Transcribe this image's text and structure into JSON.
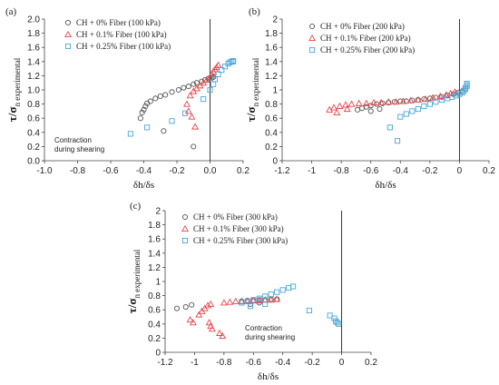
{
  "chart_data": [
    {
      "type": "scatter",
      "panel_label": "(a)",
      "xlabel": "δh/δs",
      "ylabel_main": "τ/σ",
      "ylabel_sub": "n experimental",
      "xlim": [
        -1.0,
        0.2
      ],
      "ylim": [
        0,
        2.0
      ],
      "xticks": [
        "-1.0",
        "-0.8",
        "-0.6",
        "-0.4",
        "-0.2",
        "0.0",
        "0.2"
      ],
      "yticks": [
        "0.0",
        "0.2",
        "0.4",
        "0.6",
        "0.8",
        "1.0",
        "1.2",
        "1.4",
        "1.6",
        "1.8",
        "2.0"
      ],
      "annotation": [
        "Contraction",
        "during shearing"
      ],
      "legend_position": "top-left",
      "series": [
        {
          "name": "CH + 0% Fiber (100 kPa)",
          "marker": "circle",
          "color": "#555555",
          "points": [
            [
              -0.42,
              0.6
            ],
            [
              -0.41,
              0.68
            ],
            [
              -0.4,
              0.72
            ],
            [
              -0.39,
              0.77
            ],
            [
              -0.38,
              0.81
            ],
            [
              -0.36,
              0.84
            ],
            [
              -0.33,
              0.88
            ],
            [
              -0.3,
              0.91
            ],
            [
              -0.27,
              0.93
            ],
            [
              -0.23,
              0.97
            ],
            [
              -0.19,
              1.0
            ],
            [
              -0.16,
              1.03
            ],
            [
              -0.13,
              1.05
            ],
            [
              -0.1,
              1.08
            ],
            [
              -0.08,
              1.1
            ],
            [
              -0.05,
              1.12
            ],
            [
              -0.03,
              1.14
            ],
            [
              -0.01,
              1.16
            ],
            [
              0.01,
              1.17
            ],
            [
              0.02,
              1.18
            ],
            [
              -0.1,
              0.2
            ],
            [
              -0.28,
              0.42
            ]
          ]
        },
        {
          "name": "CH + 0.1% Fiber (100 kPa)",
          "marker": "triangle",
          "color": "#e8454a",
          "points": [
            [
              -0.09,
              0.48
            ],
            [
              -0.11,
              0.62
            ],
            [
              -0.13,
              0.7
            ],
            [
              -0.14,
              0.8
            ],
            [
              -0.12,
              0.92
            ],
            [
              -0.1,
              0.98
            ],
            [
              -0.08,
              1.02
            ],
            [
              -0.06,
              1.06
            ],
            [
              -0.04,
              1.1
            ],
            [
              -0.02,
              1.14
            ],
            [
              0.0,
              1.18
            ],
            [
              0.01,
              1.22
            ],
            [
              0.02,
              1.26
            ],
            [
              0.03,
              1.29
            ],
            [
              0.04,
              1.32
            ],
            [
              0.05,
              1.35
            ]
          ]
        },
        {
          "name": "CH + 0.25% Fiber (100 kPa)",
          "marker": "square",
          "color": "#4ba6d9",
          "points": [
            [
              -0.48,
              0.38
            ],
            [
              -0.38,
              0.47
            ],
            [
              -0.23,
              0.56
            ],
            [
              -0.15,
              0.67
            ],
            [
              -0.04,
              0.87
            ],
            [
              0.0,
              1.0
            ],
            [
              0.02,
              1.08
            ],
            [
              0.03,
              1.15
            ],
            [
              0.05,
              1.22
            ],
            [
              0.07,
              1.28
            ],
            [
              0.09,
              1.33
            ],
            [
              0.11,
              1.37
            ],
            [
              0.12,
              1.39
            ],
            [
              0.13,
              1.4
            ],
            [
              0.14,
              1.4
            ],
            [
              0.14,
              1.41
            ]
          ]
        }
      ]
    },
    {
      "type": "scatter",
      "panel_label": "(b)",
      "xlabel": "δh/δs",
      "ylabel_main": "τ/σ",
      "ylabel_sub": "n experimental",
      "xlim": [
        -1.2,
        0.2
      ],
      "ylim": [
        0,
        2.0
      ],
      "xticks": [
        "-1.2",
        "-1",
        "-0.8",
        "-0.6",
        "-0.4",
        "-0.2",
        "0",
        "0.2"
      ],
      "yticks": [
        "0",
        "0.2",
        "0.4",
        "0.6",
        "0.8",
        "1",
        "1.2",
        "1.4",
        "1.6",
        "1.8",
        "2"
      ],
      "legend_position": "top-left",
      "series": [
        {
          "name": "CH + 0% Fiber (200 kPa)",
          "marker": "circle",
          "color": "#555555",
          "points": [
            [
              -0.69,
              0.72
            ],
            [
              -0.66,
              0.74
            ],
            [
              -0.63,
              0.76
            ],
            [
              -0.6,
              0.78
            ],
            [
              -0.56,
              0.8
            ],
            [
              -0.52,
              0.81
            ],
            [
              -0.48,
              0.82
            ],
            [
              -0.44,
              0.83
            ],
            [
              -0.4,
              0.84
            ],
            [
              -0.36,
              0.84
            ],
            [
              -0.32,
              0.85
            ],
            [
              -0.28,
              0.86
            ],
            [
              -0.24,
              0.87
            ],
            [
              -0.2,
              0.88
            ],
            [
              -0.16,
              0.89
            ],
            [
              -0.12,
              0.9
            ],
            [
              -0.08,
              0.92
            ],
            [
              -0.04,
              0.94
            ],
            [
              -0.01,
              0.96
            ],
            [
              0.02,
              0.98
            ],
            [
              -0.6,
              0.7
            ],
            [
              -0.54,
              0.73
            ]
          ]
        },
        {
          "name": "CH + 0.1% Fiber (200 kPa)",
          "marker": "triangle",
          "color": "#e8454a",
          "points": [
            [
              -0.88,
              0.72
            ],
            [
              -0.85,
              0.75
            ],
            [
              -0.81,
              0.77
            ],
            [
              -0.77,
              0.79
            ],
            [
              -0.73,
              0.8
            ],
            [
              -0.68,
              0.81
            ],
            [
              -0.63,
              0.81
            ],
            [
              -0.58,
              0.82
            ],
            [
              -0.53,
              0.82
            ],
            [
              -0.48,
              0.83
            ],
            [
              -0.43,
              0.83
            ],
            [
              -0.38,
              0.84
            ],
            [
              -0.33,
              0.85
            ],
            [
              -0.28,
              0.86
            ],
            [
              -0.23,
              0.87
            ],
            [
              -0.18,
              0.89
            ],
            [
              -0.13,
              0.91
            ],
            [
              -0.09,
              0.93
            ],
            [
              -0.06,
              0.95
            ],
            [
              -0.03,
              0.97
            ],
            [
              -0.83,
              0.68
            ],
            [
              -0.76,
              0.73
            ]
          ]
        },
        {
          "name": "CH + 0.25% Fiber (200 kPa)",
          "marker": "square",
          "color": "#4ba6d9",
          "points": [
            [
              -0.42,
              0.28
            ],
            [
              -0.47,
              0.47
            ],
            [
              -0.4,
              0.62
            ],
            [
              -0.36,
              0.66
            ],
            [
              -0.32,
              0.7
            ],
            [
              -0.28,
              0.73
            ],
            [
              -0.24,
              0.77
            ],
            [
              -0.2,
              0.8
            ],
            [
              -0.16,
              0.83
            ],
            [
              -0.12,
              0.86
            ],
            [
              -0.08,
              0.88
            ],
            [
              -0.05,
              0.9
            ],
            [
              -0.02,
              0.92
            ],
            [
              0.0,
              0.94
            ],
            [
              0.02,
              0.96
            ],
            [
              0.03,
              0.99
            ],
            [
              0.04,
              1.01
            ],
            [
              0.04,
              1.03
            ],
            [
              0.05,
              1.05
            ],
            [
              0.05,
              1.07
            ],
            [
              0.05,
              1.09
            ]
          ]
        }
      ]
    },
    {
      "type": "scatter",
      "panel_label": "(c)",
      "xlabel": "δh/δs",
      "ylabel_main": "τ/σ",
      "ylabel_sub": "n experimental",
      "xlim": [
        -1.2,
        0.2
      ],
      "ylim": [
        0,
        2.0
      ],
      "xticks": [
        "-1.2",
        "-1",
        "-0.8",
        "-0.6",
        "-0.4",
        "-0.2",
        "0",
        "0.2"
      ],
      "yticks": [
        "0",
        "0.2",
        "0.4",
        "0.6",
        "0.8",
        "1",
        "1.2",
        "1.4",
        "1.6",
        "1.8",
        "2"
      ],
      "annotation": [
        "Contraction",
        "during shearing"
      ],
      "legend_position": "top-left",
      "series": [
        {
          "name": "CH + 0% Fiber (300 kPa)",
          "marker": "circle",
          "color": "#555555",
          "points": [
            [
              -1.12,
              0.62
            ],
            [
              -1.06,
              0.64
            ],
            [
              -1.02,
              0.67
            ],
            [
              -0.68,
              0.72
            ],
            [
              -0.64,
              0.73
            ],
            [
              -0.6,
              0.73
            ],
            [
              -0.56,
              0.74
            ],
            [
              -0.52,
              0.74
            ],
            [
              -0.48,
              0.75
            ],
            [
              -0.44,
              0.75
            ],
            [
              -0.62,
              0.68
            ],
            [
              -0.56,
              0.7
            ]
          ]
        },
        {
          "name": "CH + 0.1% Fiber (300 kPa)",
          "marker": "triangle",
          "color": "#e8454a",
          "points": [
            [
              -1.03,
              0.46
            ],
            [
              -1.01,
              0.42
            ],
            [
              -0.97,
              0.53
            ],
            [
              -0.95,
              0.58
            ],
            [
              -0.93,
              0.62
            ],
            [
              -0.91,
              0.66
            ],
            [
              -0.89,
              0.68
            ],
            [
              -0.9,
              0.42
            ],
            [
              -0.89,
              0.37
            ],
            [
              -0.88,
              0.33
            ],
            [
              -0.83,
              0.27
            ],
            [
              -0.81,
              0.23
            ],
            [
              -0.8,
              0.7
            ],
            [
              -0.76,
              0.71
            ],
            [
              -0.72,
              0.72
            ],
            [
              -0.68,
              0.72
            ],
            [
              -0.64,
              0.72
            ],
            [
              -0.6,
              0.73
            ],
            [
              -0.56,
              0.73
            ],
            [
              -0.52,
              0.74
            ],
            [
              -0.48,
              0.74
            ],
            [
              -0.44,
              0.75
            ]
          ]
        },
        {
          "name": "CH + 0.25% Fiber (300 kPa)",
          "marker": "square",
          "color": "#4ba6d9",
          "points": [
            [
              -0.68,
              0.7
            ],
            [
              -0.64,
              0.72
            ],
            [
              -0.6,
              0.74
            ],
            [
              -0.56,
              0.76
            ],
            [
              -0.52,
              0.79
            ],
            [
              -0.48,
              0.82
            ],
            [
              -0.44,
              0.85
            ],
            [
              -0.4,
              0.88
            ],
            [
              -0.36,
              0.91
            ],
            [
              -0.33,
              0.93
            ],
            [
              -0.62,
              0.65
            ],
            [
              -0.52,
              0.68
            ],
            [
              -0.22,
              0.59
            ],
            [
              -0.08,
              0.52
            ],
            [
              -0.05,
              0.48
            ],
            [
              -0.04,
              0.44
            ],
            [
              -0.03,
              0.42
            ],
            [
              -0.02,
              0.4
            ]
          ]
        }
      ]
    }
  ]
}
